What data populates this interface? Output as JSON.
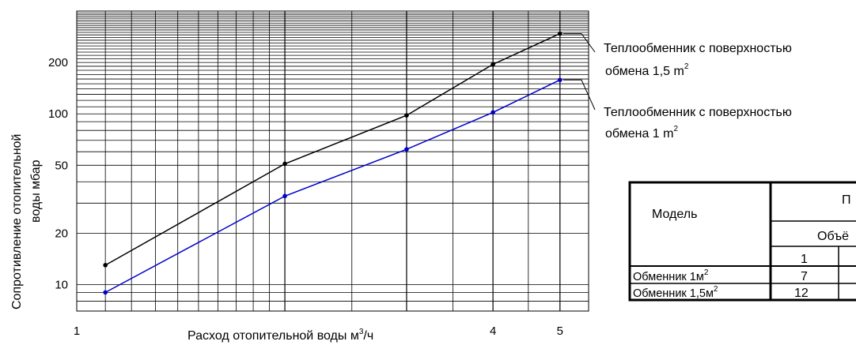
{
  "chart_data": {
    "type": "line",
    "x_scale": "log",
    "y_scale": "log",
    "xlim": [
      1,
      5.5
    ],
    "ylim": [
      7,
      400
    ],
    "grid": true,
    "xlabel": "Расход отопительной воды м³/ч",
    "xlabel_main": "Расход отопительной воды м",
    "xlabel_sup": "3",
    "xlabel_tail": "/ч",
    "ylabel_line1": "Сопротивление  отопительной",
    "ylabel_line2": "воды  мбар",
    "x_ticks": [
      {
        "value": 1,
        "label": "1"
      },
      {
        "value": 4,
        "label": "4"
      },
      {
        "value": 5,
        "label": "5"
      }
    ],
    "y_ticks": [
      {
        "value": 10,
        "label": "10"
      },
      {
        "value": 20,
        "label": "20"
      },
      {
        "value": 50,
        "label": "50"
      },
      {
        "value": 100,
        "label": "100"
      },
      {
        "value": 200,
        "label": "200"
      }
    ],
    "series": [
      {
        "color": "#000000",
        "x": [
          1.1,
          2,
          3,
          4,
          5
        ],
        "y": [
          13,
          51,
          98,
          195,
          295
        ],
        "annotation": {
          "line1": "Теплообменник с поверхностью",
          "line2_main": "обмена 1,5 m",
          "line2_sup": "2"
        }
      },
      {
        "color": "#0000cc",
        "x": [
          1.1,
          2,
          3,
          4,
          5
        ],
        "y": [
          9,
          33,
          62,
          102,
          158
        ],
        "annotation": {
          "line1": "Теплообменник с поверхностью",
          "line2_main": "обмена 1 m",
          "line2_sup": "2"
        }
      }
    ]
  },
  "table": {
    "header_model": "Модель",
    "header_top": "П",
    "header_sub": "Объё",
    "col_one": "1",
    "rows": [
      {
        "main": "Обменник 1м",
        "sup": "2",
        "value": "7"
      },
      {
        "main": "Обменник 1,5м",
        "sup": "2",
        "value": "12"
      }
    ]
  }
}
